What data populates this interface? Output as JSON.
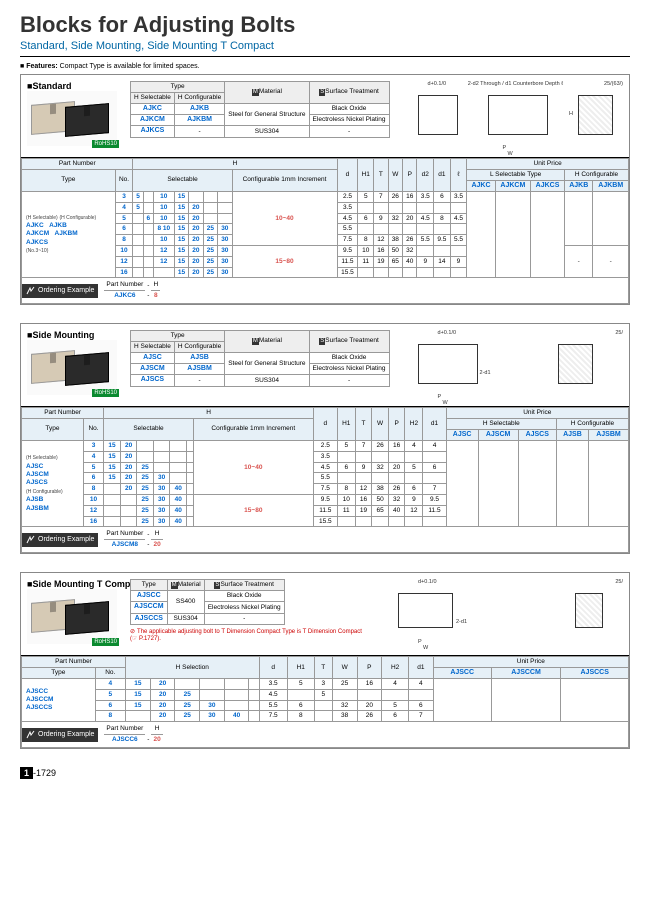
{
  "page": {
    "title": "Blocks for Adjusting Bolts",
    "subtitle": "Standard, Side Mounting, Side Mounting T Compact",
    "features_label": "Features:",
    "features_text": "Compact Type is available for limited spaces.",
    "page_badge": "1",
    "page_num": "-1729"
  },
  "standard": {
    "label": "Standard",
    "rohs": "RoHS10",
    "type_header": "Type",
    "h_sel": "H Selectable",
    "h_cfg": "H Configurable",
    "material_icon": "M",
    "material_label": "Material",
    "surface_icon": "S",
    "surface_label": "Surface Treatment",
    "type_rows": [
      {
        "a": "AJKC",
        "b": "AJKB",
        "mat": "Steel for General Structure",
        "surf": "Black Oxide"
      },
      {
        "a": "AJKCM",
        "b": "AJKBM",
        "mat": "",
        "surf": "Electroless Nickel Plating"
      },
      {
        "a": "AJKCS",
        "b": "-",
        "mat": "SUS304",
        "surf": "-"
      }
    ],
    "diag": {
      "top": "d+0.1/0",
      "note": "2-d2 Through / d1 Counterbore Depth ℓ",
      "angle": "25/(63/)",
      "labels": [
        "P",
        "W",
        "d3",
        "T",
        "H"
      ]
    },
    "main": {
      "part_number": "Part Number",
      "type": "Type",
      "no": "No.",
      "h": "H",
      "selectable": "Selectable",
      "configurable": "Configurable 1mm Increment",
      "dim_cols": [
        "d",
        "H1",
        "T",
        "W",
        "P",
        "d2",
        "d1",
        "ℓ"
      ],
      "unit_price": "Unit Price",
      "l_sel_type": "L Selectable Type",
      "h_cfg_type": "H Configurable",
      "price_cols_sel": [
        "AJKC",
        "AJKCM",
        "AJKCS"
      ],
      "price_cols_cfg": [
        "AJKB",
        "AJKBM"
      ],
      "pn_block": {
        "hsel": "(H Selectable)",
        "types_sel": [
          "AJKC",
          "AJKCM",
          "AJKCS"
        ],
        "note": "(No.3~10)",
        "hcfg": "(H Configurable)",
        "types_cfg": [
          "AJKB",
          "AJKBM"
        ]
      },
      "rows": [
        {
          "no": "3",
          "sel": [
            "5",
            "",
            "10",
            "15",
            "",
            "",
            ""
          ],
          "cfg": "10~40",
          "d": "2.5",
          "h1": "5",
          "t": "7",
          "w": "26",
          "p": "16",
          "d2": "3.5",
          "d1": "6",
          "l": "3.5"
        },
        {
          "no": "4",
          "sel": [
            "5",
            "",
            "10",
            "15",
            "20",
            "",
            ""
          ],
          "cfg": "",
          "d": "3.5",
          "h1": "",
          "t": "",
          "w": "",
          "p": "",
          "d2": "",
          "d1": "",
          "l": ""
        },
        {
          "no": "5",
          "sel": [
            "",
            "6",
            "10",
            "15",
            "20",
            "",
            ""
          ],
          "cfg": "",
          "d": "4.5",
          "h1": "6",
          "t": "9",
          "w": "32",
          "p": "20",
          "d2": "4.5",
          "d1": "8",
          "l": "4.5"
        },
        {
          "no": "6",
          "sel": [
            "",
            "",
            "8  10",
            "15",
            "20",
            "25",
            "30"
          ],
          "cfg": "",
          "d": "5.5",
          "h1": "",
          "t": "",
          "w": "",
          "p": "",
          "d2": "",
          "d1": "",
          "l": ""
        },
        {
          "no": "8",
          "sel": [
            "",
            "",
            "10",
            "15",
            "20",
            "25",
            "30"
          ],
          "cfg": "",
          "d": "7.5",
          "h1": "8",
          "t": "12",
          "w": "38",
          "p": "26",
          "d2": "5.5",
          "d1": "9.5",
          "l": "5.5"
        },
        {
          "no": "10",
          "sel": [
            "",
            "",
            "12",
            "15",
            "20",
            "25",
            "30"
          ],
          "cfg": "15~80",
          "d": "9.5",
          "h1": "10",
          "t": "16",
          "w": "50",
          "p": "32",
          "d2": "",
          "d1": "",
          "l": ""
        },
        {
          "no": "12",
          "sel": [
            "",
            "",
            "12",
            "15",
            "20",
            "25",
            "30"
          ],
          "cfg": "",
          "d": "11.5",
          "h1": "11",
          "t": "19",
          "w": "65",
          "p": "40",
          "d2": "9",
          "d1": "14",
          "l": "9"
        },
        {
          "no": "16",
          "sel": [
            "",
            "",
            "",
            "15",
            "20",
            "25",
            "30"
          ],
          "cfg": "",
          "d": "15.5",
          "h1": "",
          "t": "",
          "w": "",
          "p": "",
          "d2": "",
          "d1": "",
          "l": ""
        }
      ]
    },
    "ordering": {
      "label": "Ordering Example",
      "pn_lbl": "Part Number",
      "h_lbl": "H",
      "pn": "AJKC6",
      "h": "8"
    }
  },
  "side_mounting": {
    "label": "Side Mounting",
    "rohs": "RoHS10",
    "type_rows": [
      {
        "a": "AJSC",
        "b": "AJSB",
        "mat": "Steel for General Structure",
        "surf": "Black Oxide"
      },
      {
        "a": "AJSCM",
        "b": "AJSBM",
        "mat": "",
        "surf": "Electroless Nickel Plating"
      },
      {
        "a": "AJSCS",
        "b": "-",
        "mat": "SUS304",
        "surf": "-"
      }
    ],
    "diag": {
      "top": "d+0.1/0",
      "angle": "25/",
      "labels": [
        "P",
        "W",
        "H2",
        "T",
        "H",
        "H1",
        "2-d1"
      ]
    },
    "main": {
      "dim_cols": [
        "d",
        "H1",
        "T",
        "W",
        "P",
        "H2",
        "d1"
      ],
      "price_cols_sel": [
        "AJSC",
        "AJSCM",
        "AJSCS"
      ],
      "price_cols_cfg": [
        "AJSB",
        "AJSBM"
      ],
      "pn_block": {
        "hsel": "(H Selectable)",
        "types_sel": [
          "AJSC",
          "AJSCM",
          "AJSCS"
        ],
        "hcfg": "(H Configurable)",
        "types_cfg": [
          "AJSB",
          "AJSBM"
        ]
      },
      "rows": [
        {
          "no": "3",
          "sel": [
            "15",
            "20",
            "",
            "",
            "",
            ""
          ],
          "cfg": "10~40",
          "d": "2.5",
          "h1": "5",
          "t": "7",
          "w": "26",
          "p": "16",
          "h2": "4",
          "d1": "4"
        },
        {
          "no": "4",
          "sel": [
            "15",
            "20",
            "",
            "",
            "",
            ""
          ],
          "cfg": "",
          "d": "3.5",
          "h1": "",
          "t": "",
          "w": "",
          "p": "",
          "h2": "",
          "d1": ""
        },
        {
          "no": "5",
          "sel": [
            "15",
            "20",
            "25",
            "",
            "",
            ""
          ],
          "cfg": "",
          "d": "4.5",
          "h1": "6",
          "t": "9",
          "w": "32",
          "p": "20",
          "h2": "5",
          "d1": "6"
        },
        {
          "no": "6",
          "sel": [
            "15",
            "20",
            "25",
            "30",
            "",
            ""
          ],
          "cfg": "",
          "d": "5.5",
          "h1": "",
          "t": "",
          "w": "",
          "p": "",
          "h2": "",
          "d1": ""
        },
        {
          "no": "8",
          "sel": [
            "",
            "20",
            "25",
            "30",
            "40",
            ""
          ],
          "cfg": "",
          "d": "7.5",
          "h1": "8",
          "t": "12",
          "w": "38",
          "p": "26",
          "h2": "6",
          "d1": "7"
        },
        {
          "no": "10",
          "sel": [
            "",
            "",
            "25",
            "30",
            "40",
            ""
          ],
          "cfg": "15~80",
          "d": "9.5",
          "h1": "10",
          "t": "16",
          "w": "50",
          "p": "32",
          "h2": "9",
          "d1": "9.5"
        },
        {
          "no": "12",
          "sel": [
            "",
            "",
            "25",
            "30",
            "40",
            ""
          ],
          "cfg": "",
          "d": "11.5",
          "h1": "11",
          "t": "19",
          "w": "65",
          "p": "40",
          "h2": "12",
          "d1": "11.5"
        },
        {
          "no": "16",
          "sel": [
            "",
            "",
            "25",
            "30",
            "40",
            ""
          ],
          "cfg": "",
          "d": "15.5",
          "h1": "",
          "t": "",
          "w": "",
          "p": "",
          "h2": "",
          "d1": ""
        }
      ]
    },
    "ordering": {
      "pn": "AJSCM8",
      "h": "20"
    }
  },
  "t_compact": {
    "label": "Side Mounting T Compact",
    "rohs": "RoHS10",
    "type_header": "Type",
    "type_rows": [
      {
        "a": "AJSCC",
        "mat": "SS400",
        "surf": "Black Oxide"
      },
      {
        "a": "AJSCCM",
        "mat": "",
        "surf": "Electroless Nickel Plating"
      },
      {
        "a": "AJSCCS",
        "mat": "SUS304",
        "surf": "-"
      }
    ],
    "note": "The applicable adjusting bolt to T Dimension Compact Type is T Dimension Compact (☞ P.1727).",
    "diag": {
      "top": "d+0.1/0",
      "angle": "25/",
      "labels": [
        "P",
        "W",
        "H2",
        "T",
        "H",
        "2-d1"
      ]
    },
    "main": {
      "h_selection": "H Selection",
      "dim_cols": [
        "d",
        "H1",
        "T",
        "W",
        "P",
        "H2",
        "d1"
      ],
      "price_cols": [
        "AJSCC",
        "AJSCCM",
        "AJSCCS"
      ],
      "pn_block": {
        "types": [
          "AJSCC",
          "AJSCCM",
          "AJSCCS"
        ]
      },
      "rows": [
        {
          "no": "4",
          "sel": [
            "15",
            "20",
            "",
            "",
            "",
            ""
          ],
          "d": "3.5",
          "h1": "5",
          "t": "3",
          "w": "25",
          "p": "16",
          "h2": "4",
          "d1": "4"
        },
        {
          "no": "5",
          "sel": [
            "15",
            "20",
            "25",
            "",
            "",
            ""
          ],
          "d": "4.5",
          "h1": "",
          "t": "5",
          "w": "",
          "p": "",
          "h2": "",
          "d1": ""
        },
        {
          "no": "6",
          "sel": [
            "15",
            "20",
            "25",
            "30",
            "",
            ""
          ],
          "d": "5.5",
          "h1": "6",
          "t": "",
          "w": "32",
          "p": "20",
          "h2": "5",
          "d1": "6"
        },
        {
          "no": "8",
          "sel": [
            "",
            "20",
            "25",
            "30",
            "40",
            ""
          ],
          "d": "7.5",
          "h1": "8",
          "t": "",
          "w": "38",
          "p": "26",
          "h2": "6",
          "d1": "7"
        }
      ]
    },
    "ordering": {
      "pn": "AJSCC6",
      "h": "20"
    }
  }
}
